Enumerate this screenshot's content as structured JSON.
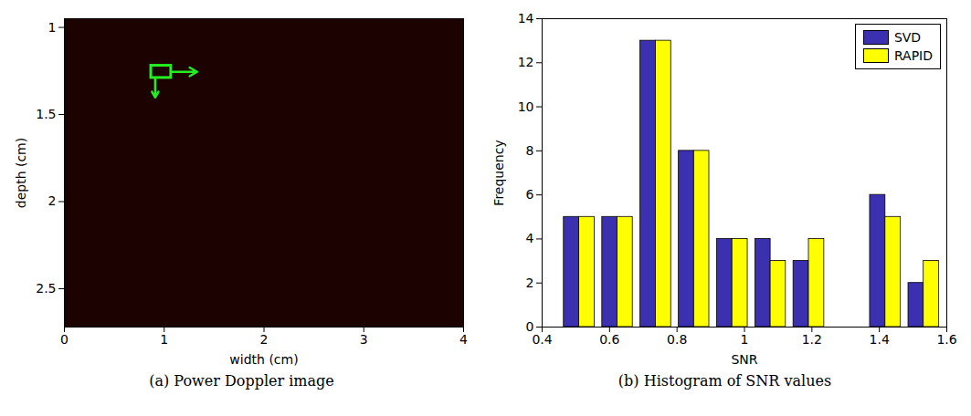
{
  "chart_data": [
    {
      "type": "image",
      "caption": "(a) Power Doppler image",
      "xlabel": "width (cm)",
      "ylabel": "depth (cm)",
      "xlim": [
        0,
        4
      ],
      "xticks": [
        0,
        1,
        2,
        3,
        4
      ],
      "ylim": [
        2.72,
        0.95
      ],
      "yticks": [
        1,
        1.5,
        2,
        2.5
      ],
      "box": {
        "x": [
          0.87,
          1.07
        ],
        "y": [
          1.22,
          1.29
        ]
      },
      "grid": false
    },
    {
      "type": "histogram",
      "caption": "(b) Histogram of SNR values",
      "xlabel": "SNR",
      "ylabel": "Frequency",
      "bins": [
        0.453,
        0.567,
        0.68,
        0.794,
        0.907,
        1.021,
        1.134,
        1.248,
        1.361,
        1.475,
        1.588
      ],
      "series": [
        {
          "name": "SVD",
          "color": "#3a30b0",
          "values": [
            5,
            5,
            13,
            8,
            4,
            4,
            3,
            0,
            6,
            2
          ]
        },
        {
          "name": "RAPID",
          "color": "#ffff00",
          "values": [
            5,
            5,
            13,
            8,
            4,
            3,
            4,
            0,
            5,
            3
          ]
        }
      ],
      "xlim": [
        0.4,
        1.6
      ],
      "xticks": [
        0.4,
        0.6,
        0.8,
        1,
        1.2,
        1.4,
        1.6
      ],
      "ylim": [
        0,
        14
      ],
      "yticks": [
        0,
        2,
        4,
        6,
        8,
        10,
        12,
        14
      ],
      "legend": "upper right",
      "grid": false
    }
  ]
}
